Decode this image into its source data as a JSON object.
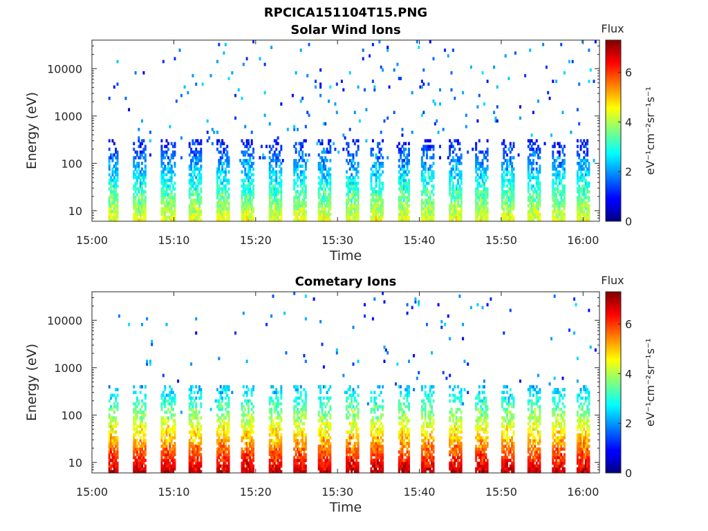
{
  "figure_title": "RPCICA151104T15.PNG",
  "chart_data": [
    {
      "type": "heatmap",
      "title": "Solar Wind Ions",
      "xlabel": "Time",
      "ylabel": "Energy (eV)",
      "x_ticks": [
        "15:00",
        "15:10",
        "15:20",
        "15:30",
        "15:40",
        "15:50",
        "16:00"
      ],
      "x_range_minutes": [
        0,
        62
      ],
      "y_scale": "log",
      "y_ticks": [
        "10",
        "100",
        "1000",
        "10000"
      ],
      "y_tick_values": [
        10,
        100,
        1000,
        10000
      ],
      "y_range": [
        6,
        40000
      ],
      "colorbar": {
        "title": "Flux",
        "label": "eV⁻¹cm⁻²sr⁻¹s⁻¹",
        "range": [
          0,
          7.3
        ],
        "ticks": [
          "0",
          "2",
          "4",
          "6"
        ],
        "tick_values": [
          0,
          2,
          4,
          6
        ],
        "colormap": "jet"
      },
      "burst_minutes": [
        2.3,
        5.8,
        9.2,
        12.5,
        15.8,
        18.9,
        22.3,
        25.3,
        28.3,
        31.6,
        34.7,
        38.0,
        41.0,
        44.3,
        47.5,
        50.8,
        54.0,
        57.0,
        60.0
      ],
      "peak_flux": 4.5,
      "core_energy_range_eV": [
        6,
        300
      ]
    },
    {
      "type": "heatmap",
      "title": "Cometary Ions",
      "xlabel": "Time",
      "ylabel": "Energy (eV)",
      "x_ticks": [
        "15:00",
        "15:10",
        "15:20",
        "15:30",
        "15:40",
        "15:50",
        "16:00"
      ],
      "x_range_minutes": [
        0,
        62
      ],
      "y_scale": "log",
      "y_ticks": [
        "10",
        "100",
        "1000",
        "10000"
      ],
      "y_tick_values": [
        10,
        100,
        1000,
        10000
      ],
      "y_range": [
        6,
        40000
      ],
      "colorbar": {
        "title": "Flux",
        "label": "eV⁻¹cm⁻²sr⁻¹s⁻¹",
        "range": [
          0,
          7.3
        ],
        "ticks": [
          "0",
          "2",
          "4",
          "6"
        ],
        "tick_values": [
          0,
          2,
          4,
          6
        ],
        "colormap": "jet"
      },
      "burst_minutes": [
        2.3,
        5.8,
        9.2,
        12.5,
        15.8,
        18.9,
        22.3,
        25.3,
        28.3,
        31.6,
        34.7,
        38.0,
        41.0,
        44.3,
        47.5,
        50.8,
        54.0,
        57.0,
        60.0
      ],
      "peak_flux": 7.0,
      "core_energy_range_eV": [
        6,
        400
      ]
    }
  ]
}
